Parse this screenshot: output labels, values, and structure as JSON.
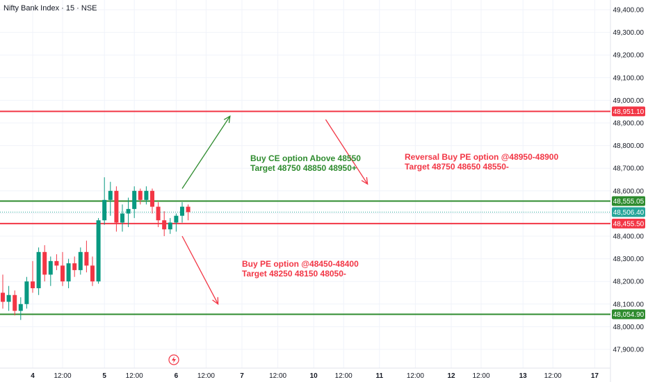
{
  "header": {
    "title": "Nifty Bank Index · 15 · NSE"
  },
  "colors": {
    "up": "#089981",
    "down": "#f23645",
    "green_level": "#2e8b2e",
    "red_level": "#f23645",
    "current": "#26a69a",
    "grid": "#f0f3fa",
    "axis_text": "#131722"
  },
  "chart_data": {
    "type": "candlestick",
    "title": "Nifty Bank Index · 15 · NSE",
    "ylim": [
      47840,
      49440
    ],
    "yticks": [
      "49,400.00",
      "49,300.00",
      "49,200.00",
      "49,100.00",
      "49,000.00",
      "48,900.00",
      "48,800.00",
      "48,700.00",
      "48,600.00",
      "48,500.00",
      "48,400.00",
      "48,300.00",
      "48,200.00",
      "48,100.00",
      "48,000.00",
      "47,900.00"
    ],
    "ytick_values": [
      49400,
      49300,
      49200,
      49100,
      49000,
      48900,
      48800,
      48700,
      48600,
      48500,
      48400,
      48300,
      48200,
      48100,
      48000,
      47900
    ],
    "xticks": [
      {
        "label": "4",
        "bar": 5
      },
      {
        "label": "12:00",
        "bar": 10
      },
      {
        "label": "5",
        "bar": 17
      },
      {
        "label": "12:00",
        "bar": 22
      },
      {
        "label": "6",
        "bar": 29
      },
      {
        "label": "12:00",
        "bar": 34
      },
      {
        "label": "7",
        "bar": 40
      },
      {
        "label": "12:00",
        "bar": 46
      },
      {
        "label": "10",
        "bar": 52
      },
      {
        "label": "12:00",
        "bar": 57
      },
      {
        "label": "11",
        "bar": 63
      },
      {
        "label": "12:00",
        "bar": 69
      },
      {
        "label": "12",
        "bar": 75
      },
      {
        "label": "12:00",
        "bar": 80
      },
      {
        "label": "13",
        "bar": 87
      },
      {
        "label": "12:00",
        "bar": 92
      },
      {
        "label": "17",
        "bar": 99
      }
    ],
    "candles": [
      {
        "o": 48150,
        "h": 48230,
        "l": 48080,
        "c": 48110
      },
      {
        "o": 48110,
        "h": 48180,
        "l": 48070,
        "c": 48140
      },
      {
        "o": 48140,
        "h": 48160,
        "l": 48050,
        "c": 48070
      },
      {
        "o": 48070,
        "h": 48130,
        "l": 48030,
        "c": 48100
      },
      {
        "o": 48100,
        "h": 48220,
        "l": 48080,
        "c": 48200
      },
      {
        "o": 48200,
        "h": 48290,
        "l": 48150,
        "c": 48170
      },
      {
        "o": 48170,
        "h": 48350,
        "l": 48140,
        "c": 48330
      },
      {
        "o": 48330,
        "h": 48360,
        "l": 48200,
        "c": 48230
      },
      {
        "o": 48230,
        "h": 48310,
        "l": 48180,
        "c": 48290
      },
      {
        "o": 48290,
        "h": 48320,
        "l": 48250,
        "c": 48270
      },
      {
        "o": 48270,
        "h": 48330,
        "l": 48180,
        "c": 48200
      },
      {
        "o": 48200,
        "h": 48300,
        "l": 48170,
        "c": 48280
      },
      {
        "o": 48280,
        "h": 48310,
        "l": 48220,
        "c": 48250
      },
      {
        "o": 48250,
        "h": 48350,
        "l": 48230,
        "c": 48330
      },
      {
        "o": 48330,
        "h": 48380,
        "l": 48240,
        "c": 48270
      },
      {
        "o": 48270,
        "h": 48310,
        "l": 48180,
        "c": 48200
      },
      {
        "o": 48200,
        "h": 48480,
        "l": 48190,
        "c": 48470
      },
      {
        "o": 48470,
        "h": 48660,
        "l": 48450,
        "c": 48560
      },
      {
        "o": 48560,
        "h": 48640,
        "l": 48490,
        "c": 48600
      },
      {
        "o": 48600,
        "h": 48620,
        "l": 48420,
        "c": 48460
      },
      {
        "o": 48460,
        "h": 48540,
        "l": 48420,
        "c": 48500
      },
      {
        "o": 48500,
        "h": 48570,
        "l": 48440,
        "c": 48520
      },
      {
        "o": 48520,
        "h": 48620,
        "l": 48480,
        "c": 48600
      },
      {
        "o": 48600,
        "h": 48610,
        "l": 48540,
        "c": 48560
      },
      {
        "o": 48560,
        "h": 48620,
        "l": 48540,
        "c": 48600
      },
      {
        "o": 48600,
        "h": 48610,
        "l": 48500,
        "c": 48530
      },
      {
        "o": 48530,
        "h": 48550,
        "l": 48440,
        "c": 48470
      },
      {
        "o": 48470,
        "h": 48510,
        "l": 48400,
        "c": 48430
      },
      {
        "o": 48430,
        "h": 48480,
        "l": 48410,
        "c": 48460
      },
      {
        "o": 48460,
        "h": 48500,
        "l": 48420,
        "c": 48490
      },
      {
        "o": 48490,
        "h": 48550,
        "l": 48460,
        "c": 48530
      },
      {
        "o": 48530,
        "h": 48540,
        "l": 48470,
        "c": 48506
      }
    ],
    "levels": [
      {
        "name": "level-48951",
        "value": 48951.1,
        "label": "48,951.10",
        "color": "#f23645"
      },
      {
        "name": "level-48555",
        "value": 48555.05,
        "label": "48,555.05",
        "color": "#2e8b2e"
      },
      {
        "name": "level-48455",
        "value": 48455.5,
        "label": "48,455.50",
        "color": "#f23645"
      },
      {
        "name": "level-48054",
        "value": 48054.9,
        "label": "48,054.90",
        "color": "#2e8b2e"
      }
    ],
    "current_price": {
      "value": 48506.4,
      "label": "48,506.40",
      "color": "#26a69a"
    },
    "annotations": [
      {
        "name": "buy-ce-annotation",
        "lines": [
          "Buy CE option Above 48550",
          "Target 48750 48850 48950+"
        ],
        "color": "#2e8b2e"
      },
      {
        "name": "reversal-pe-annotation",
        "lines": [
          "Reversal Buy PE option @48950-48900",
          "Target 48750 48650 48550-"
        ],
        "color": "#f23645"
      },
      {
        "name": "buy-pe-annotation",
        "lines": [
          "Buy PE option @48450-48400",
          "Target 48250 48150 48050-"
        ],
        "color": "#f23645"
      }
    ],
    "arrows": [
      {
        "name": "up-arrow",
        "from": [
          30,
          48610
        ],
        "to": [
          38,
          48930
        ],
        "color": "#2e8b2e"
      },
      {
        "name": "down-arrow-upper",
        "from": [
          54,
          48915
        ],
        "to": [
          61,
          48630
        ],
        "color": "#f23645"
      },
      {
        "name": "down-arrow-lower",
        "from": [
          30,
          48400
        ],
        "to": [
          36,
          48100
        ],
        "color": "#f23645"
      }
    ]
  }
}
